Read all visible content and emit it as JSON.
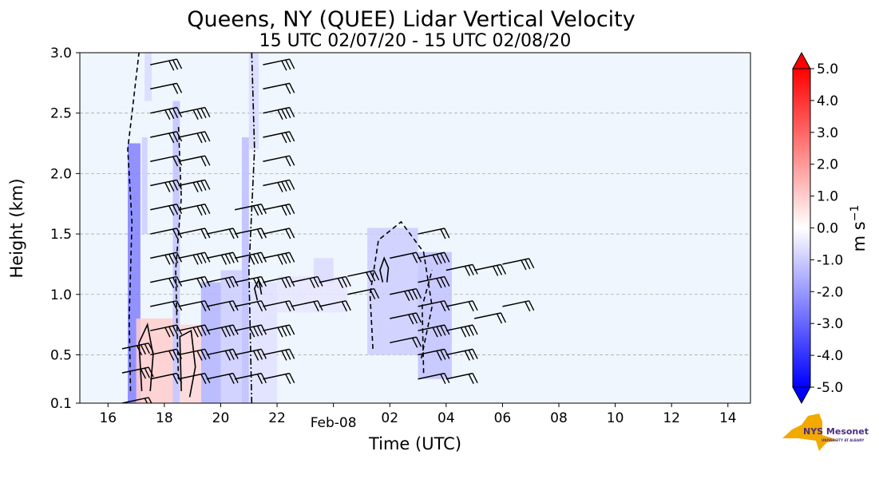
{
  "chart_data": {
    "type": "heatmap",
    "title": "Queens, NY (QUEE) Lidar Vertical Velocity",
    "subtitle": "15 UTC 02/07/20 - 15 UTC 02/08/20",
    "xlabel": "Time (UTC)",
    "ylabel": "Height (km)",
    "xlim_hours_from_start": [
      0,
      23.8
    ],
    "x_ticks": [
      {
        "label": "16",
        "hour": 1
      },
      {
        "label": "18",
        "hour": 3
      },
      {
        "label": "20",
        "hour": 5
      },
      {
        "label": "22",
        "hour": 7
      },
      {
        "label": "Feb-08",
        "hour": 9
      },
      {
        "label": "02",
        "hour": 11
      },
      {
        "label": "04",
        "hour": 13
      },
      {
        "label": "06",
        "hour": 15
      },
      {
        "label": "08",
        "hour": 17
      },
      {
        "label": "10",
        "hour": 19
      },
      {
        "label": "12",
        "hour": 21
      },
      {
        "label": "14",
        "hour": 23
      }
    ],
    "ylim": [
      0.1,
      3.0
    ],
    "y_ticks": [
      {
        "label": "0.1",
        "value": 0.1
      },
      {
        "label": "0.5",
        "value": 0.5
      },
      {
        "label": "1.0",
        "value": 1.0
      },
      {
        "label": "1.5",
        "value": 1.5
      },
      {
        "label": "2.0",
        "value": 2.0
      },
      {
        "label": "2.5",
        "value": 2.5
      },
      {
        "label": "3.0",
        "value": 3.0
      }
    ],
    "grid": "horizontal dashed",
    "colorbar": {
      "label": "m s",
      "label_sup": "−1",
      "vmin": -5.0,
      "vmax": 5.0,
      "low_color": "#0000ff",
      "mid_color": "#ffffff",
      "high_color": "#ff0000",
      "ticks": [
        "5.0",
        "4.0",
        "3.0",
        "2.0",
        "1.0",
        "0.0",
        "-1.0",
        "-2.0",
        "-3.0",
        "-4.0",
        "-5.0"
      ]
    },
    "background_color": "#eff6fd",
    "regions": [
      {
        "x0": 1.7,
        "x1": 2.15,
        "y0": 0.1,
        "y1": 2.25,
        "w": -2.5
      },
      {
        "x0": 2.2,
        "x1": 2.4,
        "y0": 1.5,
        "y1": 2.3,
        "w": -1.0
      },
      {
        "x0": 2.3,
        "x1": 2.55,
        "y0": 2.6,
        "y1": 3.0,
        "w": -0.7
      },
      {
        "x0": 3.3,
        "x1": 3.55,
        "y0": 0.1,
        "y1": 2.6,
        "w": -1.2
      },
      {
        "x0": 5.75,
        "x1": 6.0,
        "y0": 0.1,
        "y1": 2.3,
        "w": -1.3
      },
      {
        "x0": 6.0,
        "x1": 6.35,
        "y0": 2.2,
        "y1": 3.0,
        "w": -0.7
      },
      {
        "x0": 4.3,
        "x1": 5.0,
        "y0": 0.1,
        "y1": 1.1,
        "w": -1.5
      },
      {
        "x0": 5.0,
        "x1": 5.75,
        "y0": 0.1,
        "y1": 1.2,
        "w": -1.0
      },
      {
        "x0": 6.0,
        "x1": 7.0,
        "y0": 0.1,
        "y1": 1.1,
        "w": -0.6
      },
      {
        "x0": 2.0,
        "x1": 3.3,
        "y0": 0.1,
        "y1": 0.8,
        "w": 1.0
      },
      {
        "x0": 3.55,
        "x1": 4.3,
        "y0": 0.1,
        "y1": 0.75,
        "w": 0.8
      },
      {
        "x0": 7.0,
        "x1": 9.5,
        "y0": 0.85,
        "y1": 1.15,
        "w": -0.5
      },
      {
        "x0": 8.3,
        "x1": 9.0,
        "y0": 1.1,
        "y1": 1.3,
        "w": -0.7
      },
      {
        "x0": 10.2,
        "x1": 12.0,
        "y0": 0.5,
        "y1": 1.55,
        "w": -1.0
      },
      {
        "x0": 12.0,
        "x1": 13.2,
        "y0": 0.3,
        "y1": 1.35,
        "w": -1.2
      }
    ],
    "wind_barbs": [
      {
        "x": 1.5,
        "ys": [
          0.1,
          0.35,
          0.55
        ]
      },
      {
        "x": 2.5,
        "ys": [
          0.3,
          0.5,
          0.7,
          0.9,
          1.1,
          1.3,
          1.5,
          1.7,
          1.9,
          2.1,
          2.3,
          2.5,
          2.7,
          2.9
        ]
      },
      {
        "x": 3.5,
        "ys": [
          0.3,
          0.5,
          0.7,
          0.9,
          1.1,
          1.3,
          1.5,
          1.7,
          1.9,
          2.1,
          2.3,
          2.5
        ]
      },
      {
        "x": 4.5,
        "ys": [
          0.3,
          0.5,
          0.7,
          0.9,
          1.1,
          1.3,
          1.5
        ]
      },
      {
        "x": 5.5,
        "ys": [
          0.3,
          0.5,
          0.7,
          0.9,
          1.1,
          1.3,
          1.5,
          1.7
        ]
      },
      {
        "x": 6.5,
        "ys": [
          0.3,
          0.5,
          0.7,
          0.9,
          1.1,
          1.3,
          1.5,
          1.7,
          1.9,
          2.1,
          2.3,
          2.5,
          2.7,
          2.9
        ]
      },
      {
        "x": 7.5,
        "ys": [
          0.9,
          1.1
        ]
      },
      {
        "x": 8.5,
        "ys": [
          0.9,
          1.1
        ]
      },
      {
        "x": 9.5,
        "ys": [
          1.0,
          1.15
        ]
      },
      {
        "x": 11.0,
        "ys": [
          0.6,
          0.8,
          1.0,
          1.3
        ]
      },
      {
        "x": 12.0,
        "ys": [
          0.3,
          0.5,
          0.7,
          0.9,
          1.1,
          1.3,
          1.5
        ]
      },
      {
        "x": 13.0,
        "ys": [
          0.3,
          0.5,
          0.7,
          0.9,
          1.2
        ]
      },
      {
        "x": 14.0,
        "ys": [
          0.8,
          1.2
        ]
      },
      {
        "x": 15.0,
        "ys": [
          0.9,
          1.25
        ]
      }
    ],
    "contours": [
      {
        "style": "dashed",
        "points": [
          [
            1.8,
            0.2
          ],
          [
            1.75,
            0.8
          ],
          [
            1.85,
            1.6
          ],
          [
            1.7,
            2.2
          ],
          [
            1.9,
            2.6
          ],
          [
            2.1,
            3.0
          ]
        ]
      },
      {
        "style": "dashed",
        "points": [
          [
            3.5,
            0.3
          ],
          [
            3.4,
            1.2
          ],
          [
            3.6,
            1.8
          ],
          [
            3.5,
            2.4
          ]
        ]
      },
      {
        "style": "dashdot",
        "points": [
          [
            6.1,
            0.1
          ],
          [
            6.0,
            1.2
          ],
          [
            6.2,
            2.2
          ],
          [
            6.1,
            3.0
          ]
        ]
      },
      {
        "style": "solid",
        "points": [
          [
            2.2,
            0.2
          ],
          [
            2.1,
            0.6
          ],
          [
            2.4,
            0.75
          ],
          [
            2.6,
            0.5
          ],
          [
            2.5,
            0.2
          ]
        ]
      },
      {
        "style": "solid",
        "points": [
          [
            3.6,
            0.2
          ],
          [
            3.55,
            0.65
          ],
          [
            3.95,
            0.7
          ],
          [
            4.1,
            0.4
          ],
          [
            3.9,
            0.15
          ]
        ]
      },
      {
        "style": "solid",
        "points": [
          [
            6.3,
            0.95
          ],
          [
            6.2,
            1.05
          ],
          [
            6.35,
            1.12
          ],
          [
            6.45,
            1.0
          ]
        ]
      },
      {
        "style": "solid",
        "points": [
          [
            10.75,
            1.1
          ],
          [
            10.65,
            1.2
          ],
          [
            10.8,
            1.3
          ],
          [
            10.95,
            1.22
          ],
          [
            10.9,
            1.1
          ]
        ]
      },
      {
        "style": "dashed",
        "points": [
          [
            10.4,
            0.55
          ],
          [
            10.3,
            1.0
          ],
          [
            10.6,
            1.45
          ],
          [
            11.4,
            1.6
          ],
          [
            12.2,
            1.35
          ],
          [
            12.5,
            0.9
          ],
          [
            12.1,
            0.45
          ]
        ]
      },
      {
        "style": "dashed",
        "points": [
          [
            12.2,
            0.35
          ],
          [
            12.15,
            0.9
          ],
          [
            12.5,
            1.2
          ]
        ]
      }
    ]
  },
  "logo": {
    "text": "NYS Mesonet",
    "subtext": "UNIVERSITY AT ALBANY",
    "state_color": "#f2a900",
    "text_color": "#4b2e83"
  }
}
